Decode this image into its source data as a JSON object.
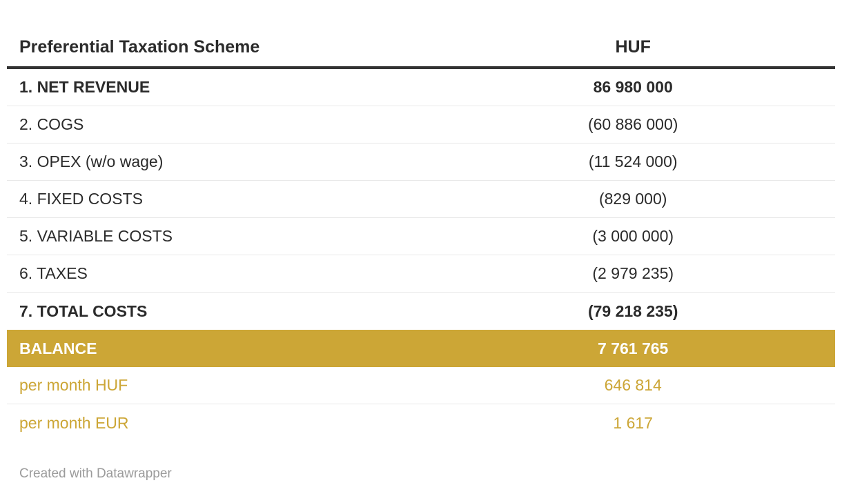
{
  "chart_data": {
    "type": "table",
    "columns": [
      "Preferential Taxation Scheme",
      "HUF"
    ],
    "rows": [
      {
        "label": "1. NET REVENUE",
        "value": "86 980 000",
        "numeric": 86980000,
        "emphasis": "bold"
      },
      {
        "label": "2. COGS",
        "value": "(60 886 000)",
        "numeric": -60886000,
        "emphasis": "normal"
      },
      {
        "label": "3. OPEX (w/o wage)",
        "value": "(11 524 000)",
        "numeric": -11524000,
        "emphasis": "normal"
      },
      {
        "label": "4. FIXED COSTS",
        "value": "(829 000)",
        "numeric": -829000,
        "emphasis": "normal"
      },
      {
        "label": "5. VARIABLE COSTS",
        "value": "(3 000 000)",
        "numeric": -3000000,
        "emphasis": "normal"
      },
      {
        "label": "6. TAXES",
        "value": "(2 979 235)",
        "numeric": -2979235,
        "emphasis": "normal"
      },
      {
        "label": "7. TOTAL COSTS",
        "value": "(79 218 235)",
        "numeric": -79218235,
        "emphasis": "bold"
      },
      {
        "label": "BALANCE",
        "value": "7 761 765",
        "numeric": 7761765,
        "emphasis": "highlight"
      },
      {
        "label": "per month HUF",
        "value": "646 814",
        "numeric": 646814,
        "emphasis": "gold"
      },
      {
        "label": "per month EUR",
        "value": "1 617",
        "numeric": 1617,
        "emphasis": "gold"
      }
    ],
    "legend": "none",
    "grid": "horizontal-dividers"
  },
  "footer": {
    "credit": "Created with Datawrapper"
  },
  "colors": {
    "gold": "#cca636",
    "text": "#2b2b2b",
    "header_border": "#333333",
    "divider": "#e8e8e8",
    "footer_text": "#9b9b9b",
    "highlight_text": "#ffffff"
  }
}
